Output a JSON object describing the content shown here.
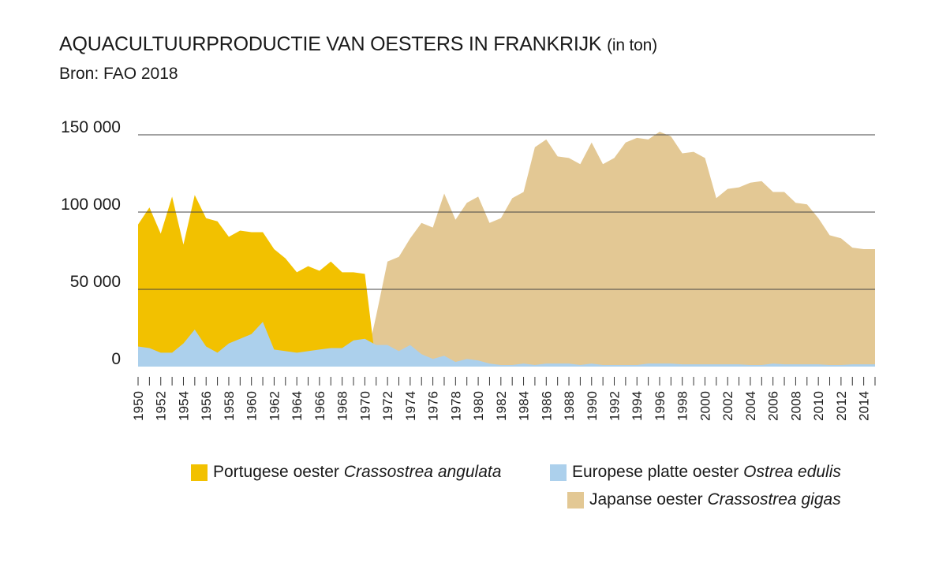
{
  "header": {
    "title": "AQUACULTUURPRODUCTIE VAN OESTERS IN FRANKRIJK",
    "title_unit": "(in ton)",
    "subtitle": "Bron: FAO 2018"
  },
  "colors": {
    "portugese": "#f2c100",
    "europese": "#acd0ec",
    "japanse": "#e3c894",
    "gridline": "#444444",
    "text": "#1a1a1a"
  },
  "legend": [
    {
      "key": "portugese",
      "label": "Portugese oester",
      "latin": "Crassostrea angulata"
    },
    {
      "key": "europese",
      "label": "Europese platte oester",
      "latin": "Ostrea edulis"
    },
    {
      "key": "japanse",
      "label": "Japanse oester",
      "latin": "Crassostrea gigas"
    }
  ],
  "chart_data": {
    "type": "area",
    "title": "AQUACULTUURPRODUCTIE VAN OESTERS IN FRANKRIJK (in ton)",
    "subtitle": "Bron: FAO 2018",
    "ylim": [
      0,
      150000
    ],
    "yticks": [
      0,
      50000,
      100000,
      150000
    ],
    "ytick_labels": [
      "0",
      "50 000",
      "100 000",
      "150 000"
    ],
    "grid": true,
    "legend_position": "bottom-right",
    "x_start": 1950,
    "x_end": 2015,
    "x_label_years": [
      1950,
      1952,
      1954,
      1956,
      1958,
      1960,
      1962,
      1964,
      1966,
      1968,
      1970,
      1972,
      1974,
      1976,
      1978,
      1980,
      1982,
      1984,
      1986,
      1988,
      1990,
      1992,
      1994,
      1996,
      1998,
      2000,
      2002,
      2004,
      2006,
      2008,
      2010,
      2012,
      2014
    ],
    "series": [
      {
        "name": "Europese platte oester Ostrea edulis",
        "key": "europese",
        "x": [
          1950,
          1951,
          1952,
          1953,
          1954,
          1955,
          1956,
          1957,
          1958,
          1959,
          1960,
          1961,
          1962,
          1963,
          1964,
          1965,
          1966,
          1967,
          1968,
          1969,
          1970,
          1971,
          1972,
          1973,
          1974,
          1975,
          1976,
          1977,
          1978,
          1979,
          1980,
          1981,
          1982,
          1983,
          1984,
          1985,
          1986,
          1987,
          1988,
          1989,
          1990,
          1991,
          1992,
          1993,
          1994,
          1995,
          1996,
          1997,
          1998,
          1999,
          2000,
          2001,
          2002,
          2003,
          2004,
          2005,
          2006,
          2007,
          2008,
          2009,
          2010,
          2011,
          2012,
          2013,
          2014,
          2015
        ],
        "values": [
          13000,
          12000,
          9000,
          9000,
          15000,
          24000,
          13000,
          9000,
          15000,
          18000,
          21000,
          29000,
          11000,
          10000,
          9000,
          10000,
          11000,
          12000,
          12000,
          17000,
          18000,
          14000,
          14000,
          10000,
          14000,
          8000,
          5000,
          7000,
          3000,
          5000,
          4000,
          2000,
          1000,
          1000,
          2000,
          1000,
          2000,
          2000,
          2000,
          1000,
          2000,
          1000,
          1000,
          1000,
          1000,
          2000,
          2000,
          2000,
          1500,
          1500,
          1500,
          1500,
          1500,
          1500,
          1000,
          1000,
          2000,
          1500,
          1500,
          1500,
          1500,
          1000,
          1000,
          1500,
          1500,
          1500
        ]
      },
      {
        "name": "Portugese oester Crassostrea angulata",
        "key": "portugese",
        "x": [
          1950,
          1951,
          1952,
          1953,
          1954,
          1955,
          1956,
          1957,
          1958,
          1959,
          1960,
          1961,
          1962,
          1963,
          1964,
          1965,
          1966,
          1967,
          1968,
          1969,
          1970,
          1971
        ],
        "values": [
          92000,
          103000,
          86000,
          110000,
          79000,
          111000,
          96000,
          94000,
          84000,
          88000,
          87000,
          87000,
          76000,
          70000,
          61000,
          65000,
          62000,
          68000,
          61000,
          61000,
          60000,
          0
        ]
      },
      {
        "name": "Japanse oester Crassostrea gigas",
        "key": "japanse",
        "x": [
          1970,
          1971,
          1972,
          1973,
          1974,
          1975,
          1976,
          1977,
          1978,
          1979,
          1980,
          1981,
          1982,
          1983,
          1984,
          1985,
          1986,
          1987,
          1988,
          1989,
          1990,
          1991,
          1992,
          1993,
          1994,
          1995,
          1996,
          1997,
          1998,
          1999,
          2000,
          2001,
          2002,
          2003,
          2004,
          2005,
          2006,
          2007,
          2008,
          2009,
          2010,
          2011,
          2012,
          2013,
          2014,
          2015
        ],
        "values": [
          0,
          33000,
          68000,
          71000,
          83000,
          93000,
          90000,
          112000,
          95000,
          106000,
          110000,
          93000,
          96000,
          109000,
          113000,
          142000,
          147000,
          136000,
          135000,
          131000,
          145000,
          131000,
          135000,
          145000,
          148000,
          147000,
          152000,
          149000,
          138000,
          139000,
          135000,
          109000,
          115000,
          116000,
          119000,
          120000,
          113000,
          113000,
          106000,
          105000,
          96000,
          85000,
          83000,
          77000,
          76000,
          76000
        ]
      }
    ]
  }
}
